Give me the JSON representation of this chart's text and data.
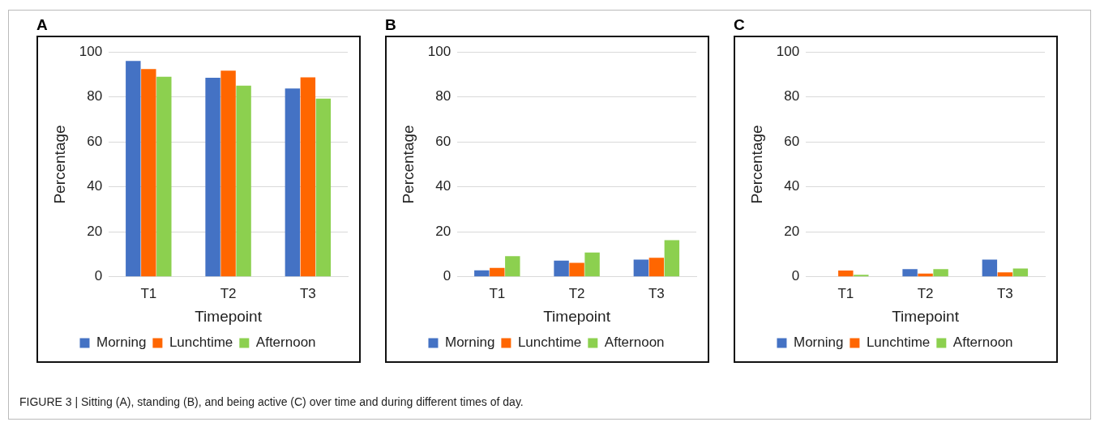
{
  "chart_data": [
    {
      "type": "bar",
      "title": "A",
      "xlabel": "Timepoint",
      "ylabel": "Percentage",
      "categories": [
        "T1",
        "T2",
        "T3"
      ],
      "series": [
        {
          "name": "Morning",
          "color": "#4472c4",
          "values": [
            96,
            88.5,
            83.8
          ]
        },
        {
          "name": "Lunchtime",
          "color": "#ff6600",
          "values": [
            92.4,
            91.7,
            88.7
          ]
        },
        {
          "name": "Afternoon",
          "color": "#8cd04f",
          "values": [
            89,
            85,
            79.3
          ]
        }
      ],
      "ylim": [
        0,
        100
      ],
      "yticks": [
        0,
        20,
        40,
        60,
        80,
        100
      ],
      "grid": "y",
      "legend": "bottom",
      "annotations": [
        "FIGURE 3 | Sitting (A), standing (B), and being active (C) over time and during different times of day."
      ]
    },
    {
      "type": "bar",
      "title": "B",
      "xlabel": "Timepoint",
      "ylabel": "Percentage",
      "categories": [
        "T1",
        "T2",
        "T3"
      ],
      "series": [
        {
          "name": "Morning",
          "color": "#4472c4",
          "values": [
            2.9,
            7.2,
            7.7
          ]
        },
        {
          "name": "Lunchtime",
          "color": "#ff6600",
          "values": [
            4,
            6.2,
            8.5
          ]
        },
        {
          "name": "Afternoon",
          "color": "#8cd04f",
          "values": [
            9.2,
            10.8,
            16.3
          ]
        }
      ],
      "ylim": [
        0,
        100
      ],
      "yticks": [
        0,
        20,
        40,
        60,
        80,
        100
      ],
      "grid": "y",
      "legend": "bottom"
    },
    {
      "type": "bar",
      "title": "C",
      "xlabel": "Timepoint",
      "ylabel": "Percentage",
      "categories": [
        "T1",
        "T2",
        "T3"
      ],
      "series": [
        {
          "name": "Morning",
          "color": "#4472c4",
          "values": [
            0,
            3.4,
            7.7
          ]
        },
        {
          "name": "Lunchtime",
          "color": "#ff6600",
          "values": [
            2.8,
            1.5,
            2
          ]
        },
        {
          "name": "Afternoon",
          "color": "#8cd04f",
          "values": [
            0.9,
            3.4,
            3.7
          ]
        }
      ],
      "ylim": [
        0,
        100
      ],
      "yticks": [
        0,
        20,
        40,
        60,
        80,
        100
      ],
      "grid": "y",
      "legend": "bottom"
    }
  ]
}
